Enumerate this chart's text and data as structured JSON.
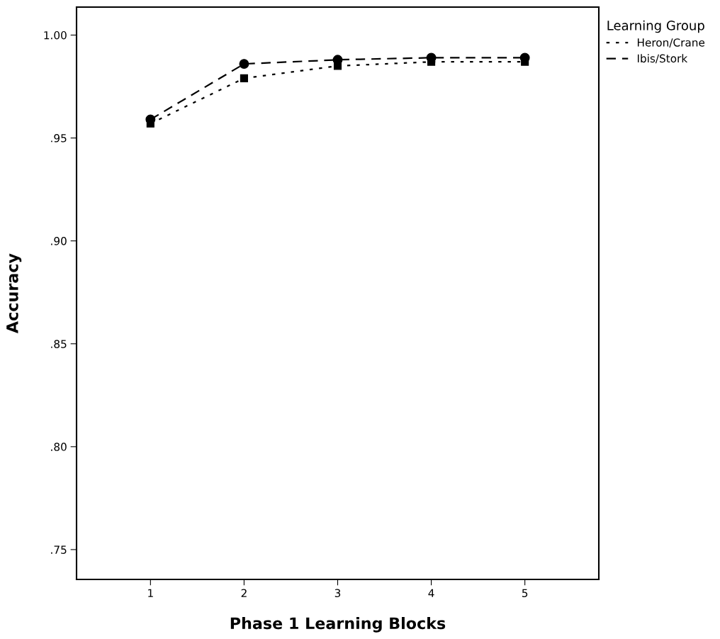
{
  "chart_data": {
    "type": "line",
    "xlabel": "Phase 1 Learning Blocks",
    "ylabel": "Accuracy",
    "legend_title": "Learning Group",
    "legend": "top right",
    "x": [
      1,
      2,
      3,
      4,
      5
    ],
    "series": [
      {
        "name": "Heron/Crane",
        "color": "#000000",
        "values": [
          0.957,
          0.979,
          0.985,
          0.987,
          0.987
        ],
        "marker": "square",
        "line_style": "dotted"
      },
      {
        "name": "Ibis/Stork",
        "color": "#000000",
        "values": [
          0.959,
          0.986,
          0.988,
          0.989,
          0.989
        ],
        "marker": "circle",
        "line_style": "dashed"
      }
    ],
    "xlim": [
      0.21,
      5.79
    ],
    "xticks": [
      1,
      2,
      3,
      4,
      5
    ],
    "ylim": [
      0.7355,
      1.0136
    ],
    "yticks": [
      {
        "value": 0.75,
        "label": ".75"
      },
      {
        "value": 0.8,
        "label": ".80"
      },
      {
        "value": 0.85,
        "label": ".85"
      },
      {
        "value": 0.9,
        "label": ".90"
      },
      {
        "value": 0.95,
        "label": ".95"
      },
      {
        "value": 1.0,
        "label": "1.00"
      }
    ],
    "grid": false
  }
}
